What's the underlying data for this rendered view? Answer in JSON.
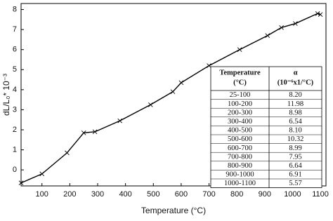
{
  "chart_data": {
    "type": "line",
    "x_label": "Temperature (°C)",
    "y_label": "dL/L₀* 10⁻³",
    "series": [
      {
        "color": "#000000",
        "x": [
          25,
          100,
          190,
          250,
          290,
          380,
          490,
          570,
          600,
          700,
          810,
          910,
          960,
          1010,
          1090,
          1100
        ],
        "values": [
          -0.65,
          -0.2,
          0.85,
          1.85,
          1.9,
          2.45,
          3.25,
          3.9,
          4.35,
          5.2,
          6.0,
          6.7,
          7.1,
          7.3,
          7.8,
          7.75
        ]
      }
    ],
    "xlim": [
      25,
      1120
    ],
    "xticks": [
      100,
      200,
      300,
      400,
      500,
      600,
      700,
      800,
      900,
      1000,
      1100
    ],
    "ylim": [
      -0.8,
      8.3
    ],
    "yticks": [
      0,
      1,
      2,
      3,
      4,
      5,
      6,
      7,
      8
    ],
    "table": {
      "columns": [
        [
          "Temperature",
          "(°C)"
        ],
        [
          "α",
          "(10⁻⁶x1/°C)"
        ]
      ],
      "rows": [
        [
          "25-100",
          "8.20"
        ],
        [
          "100-200",
          "11.98"
        ],
        [
          "200-300",
          "8.98"
        ],
        [
          "300-400",
          "6.54"
        ],
        [
          "400-500",
          "8.10"
        ],
        [
          "500-600",
          "10.32"
        ],
        [
          "600-700",
          "8.99"
        ],
        [
          "700-800",
          "7.95"
        ],
        [
          "800-900",
          "6.64"
        ],
        [
          "900-1000",
          "6.91"
        ],
        [
          "1000-1100",
          "5.57"
        ]
      ]
    }
  }
}
